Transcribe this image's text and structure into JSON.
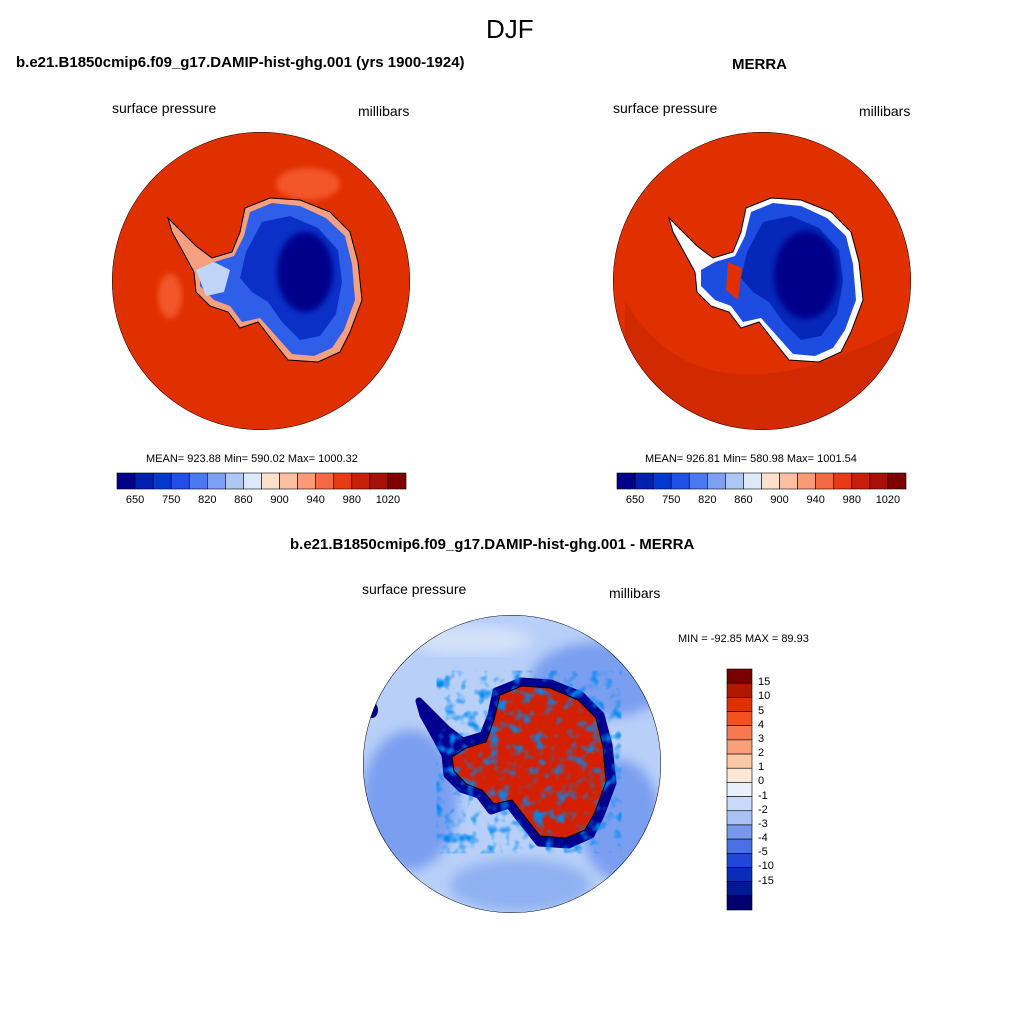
{
  "figure": {
    "title": "DJF"
  },
  "panels": [
    {
      "title": "b.e21.B1850cmip6.f09_g17.DAMIP-hist-ghg.001 (yrs 1900-1924)",
      "left_label": "surface pressure",
      "right_label": "millibars",
      "stats": "MEAN= 923.88  Min= 590.02  Max= 1000.32",
      "colorbar": {
        "orientation": "horizontal",
        "ticks": [
          "650",
          "750",
          "820",
          "860",
          "900",
          "940",
          "980",
          "1020"
        ],
        "colors": [
          "#00008b",
          "#0020b0",
          "#0038d0",
          "#2050e8",
          "#4a78f0",
          "#7ca0f2",
          "#aec8f6",
          "#dde8fa",
          "#fde0cc",
          "#fcc0a0",
          "#f99a78",
          "#f56a44",
          "#e83a14",
          "#c81e0a",
          "#a81005",
          "#800000"
        ]
      }
    },
    {
      "title": "MERRA",
      "left_label": "surface pressure",
      "right_label": "millibars",
      "stats": "MEAN= 926.81  Min= 580.98  Max= 1001.54",
      "colorbar": {
        "orientation": "horizontal",
        "ticks": [
          "650",
          "750",
          "820",
          "860",
          "900",
          "940",
          "980",
          "1020"
        ],
        "colors": [
          "#00008b",
          "#0020b0",
          "#0038d0",
          "#2050e8",
          "#4a78f0",
          "#7ca0f2",
          "#aec8f6",
          "#dde8fa",
          "#fde0cc",
          "#fcc0a0",
          "#f99a78",
          "#f56a44",
          "#e83a14",
          "#c81e0a",
          "#a81005",
          "#800000"
        ]
      }
    },
    {
      "title": "b.e21.B1850cmip6.f09_g17.DAMIP-hist-ghg.001 - MERRA",
      "left_label": "surface pressure",
      "right_label": "millibars",
      "stats": "MIN = -92.85 MAX =  89.93",
      "colorbar": {
        "orientation": "vertical",
        "ticks": [
          "15",
          "10",
          "5",
          "4",
          "3",
          "2",
          "1",
          "0",
          "-1",
          "-2",
          "-3",
          "-4",
          "-5",
          "-10",
          "-15"
        ],
        "colors": [
          "#7a0000",
          "#b01800",
          "#e03000",
          "#f55020",
          "#f87850",
          "#f9a078",
          "#fbc8a8",
          "#fde8d8",
          "#e8f0fc",
          "#c8daf8",
          "#a8c2f4",
          "#7898ee",
          "#4a70e6",
          "#2048d8",
          "#0a2cb8",
          "#001890",
          "#000070"
        ]
      }
    }
  ],
  "fill_colors": {
    "ocean_high": "#e03000",
    "ocean_low_diff": "#b8d0f8",
    "land_low": "#0030c0",
    "land_core": "#000080",
    "diff_land": "#d02000"
  }
}
